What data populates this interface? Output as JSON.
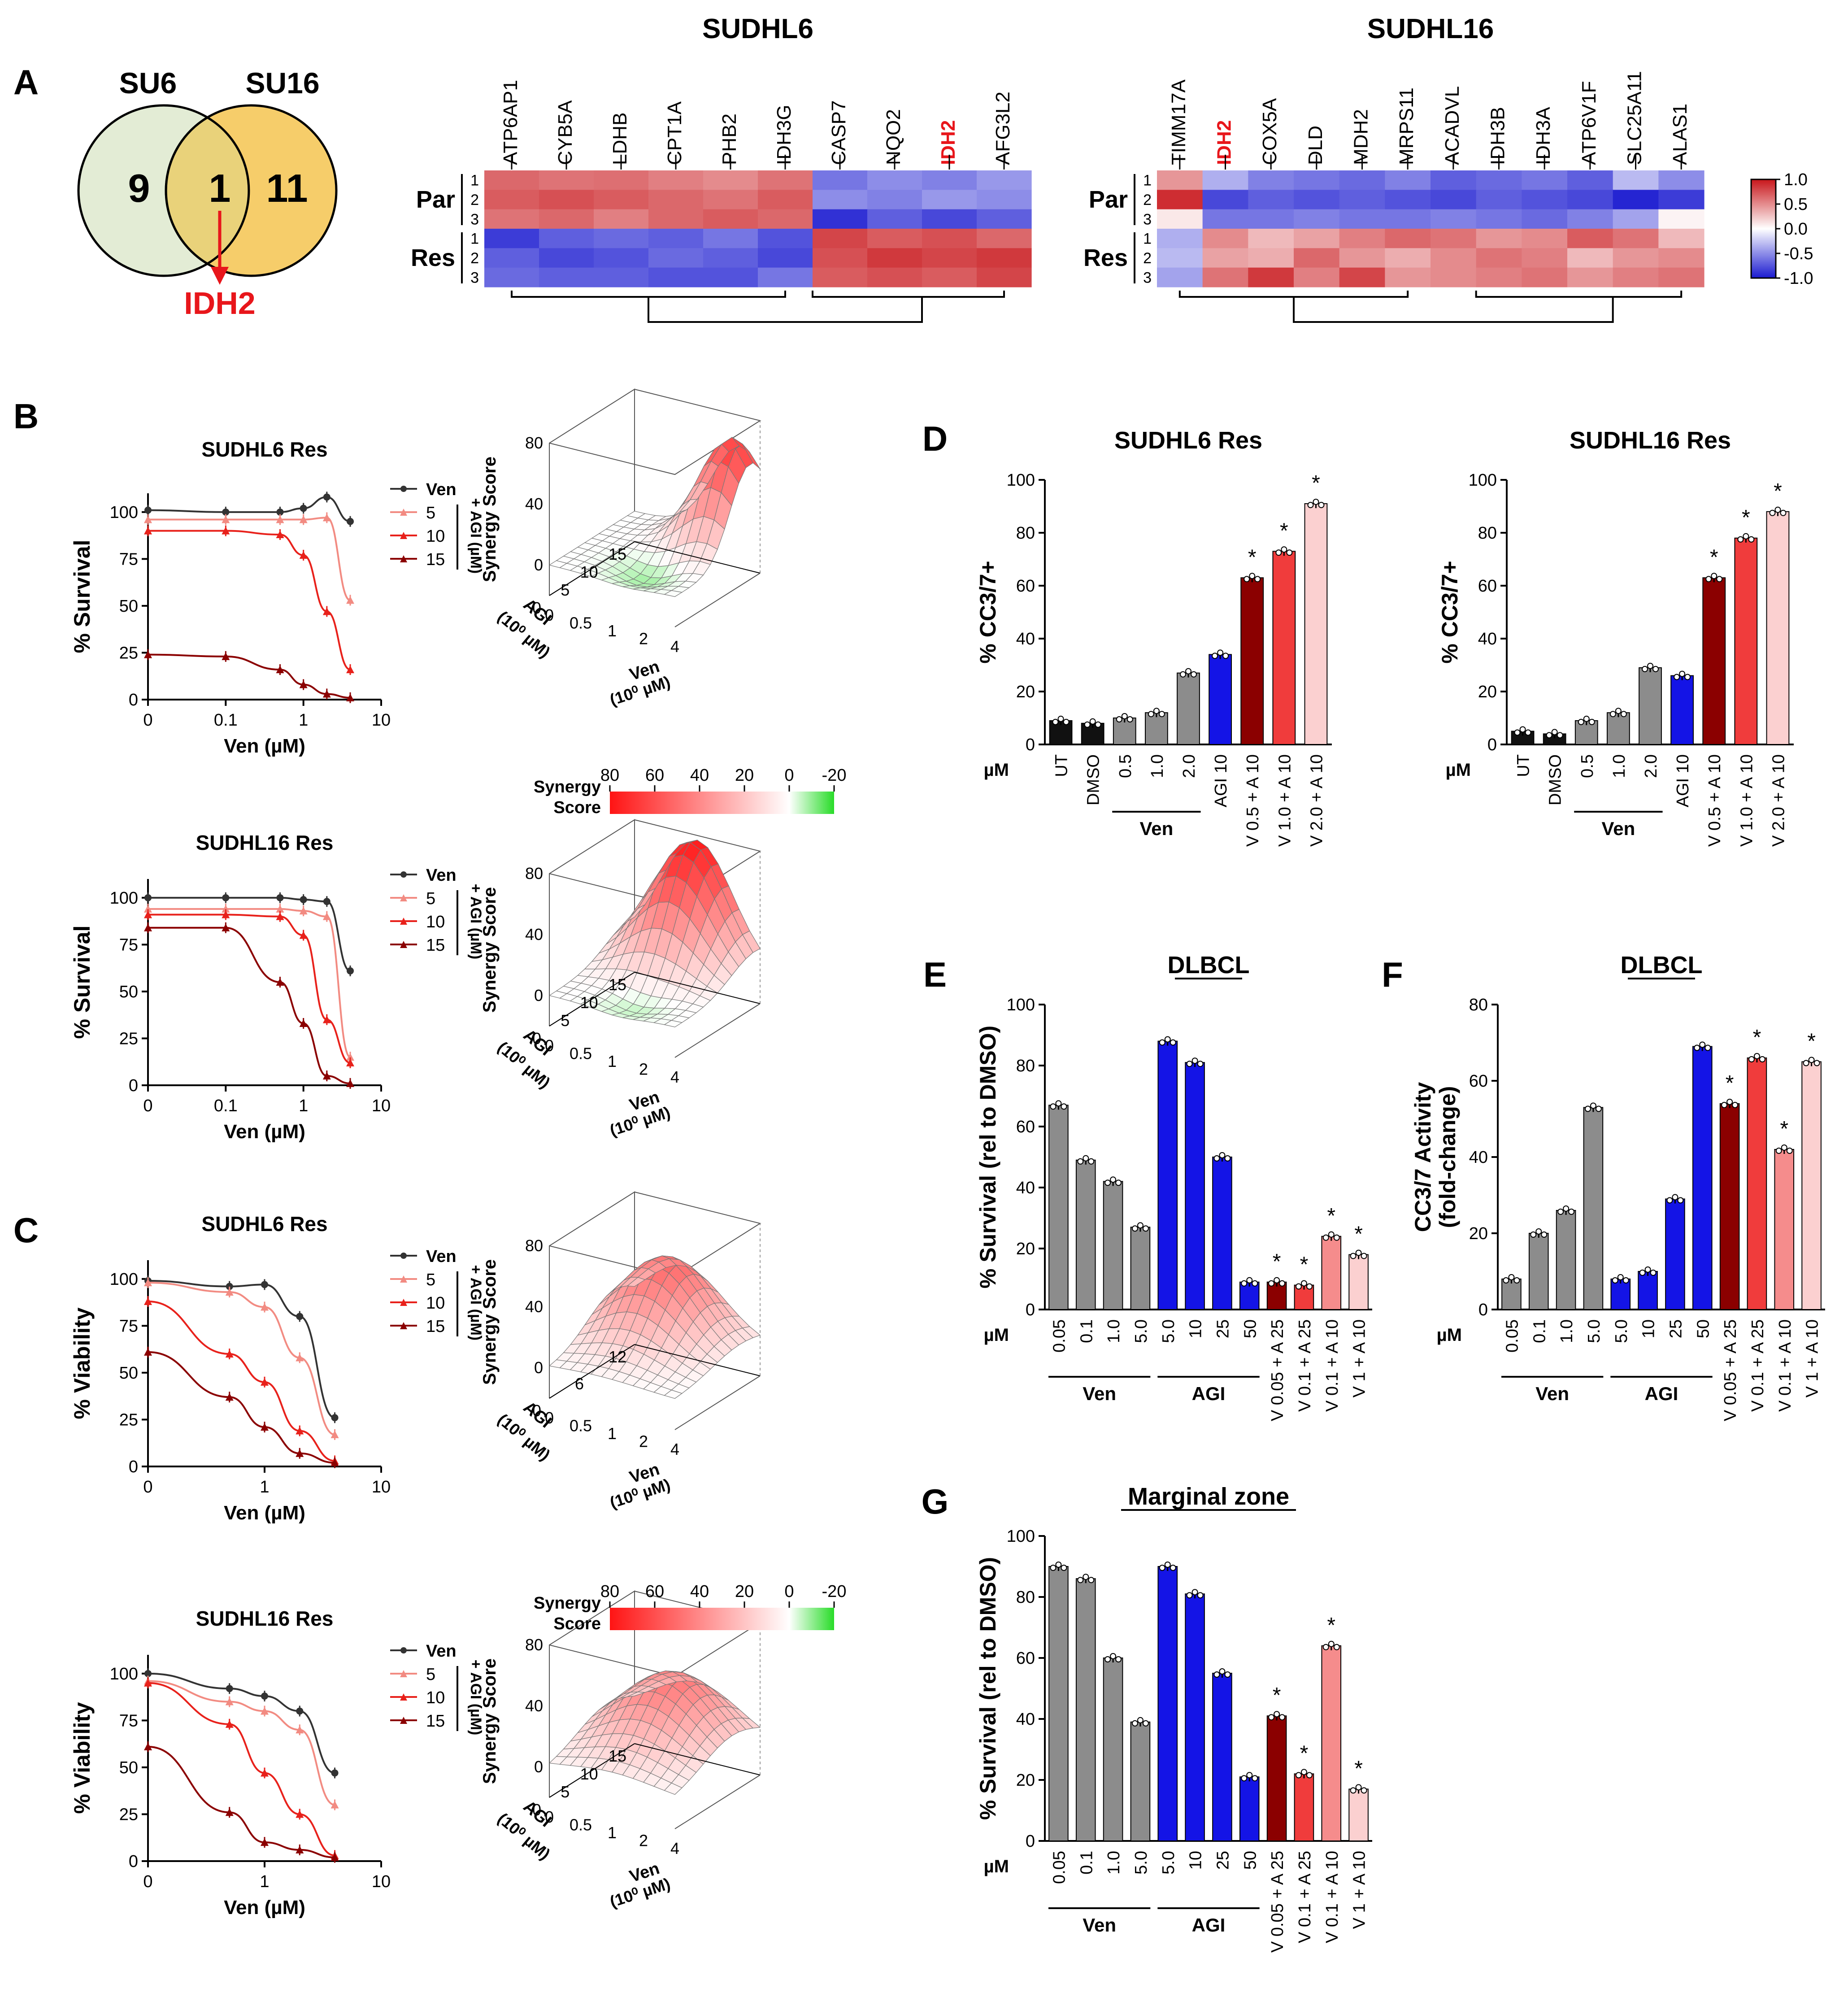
{
  "panel_letters": [
    "A",
    "B",
    "C",
    "D",
    "E",
    "F",
    "G"
  ],
  "colors": {
    "ven": "#333333",
    "agi5": "#f28b82",
    "agi10": "#e8211b",
    "agi15": "#8b0000",
    "grey_bar": "#8c8c8c",
    "black_bar": "#111111",
    "blue_bar": "#1414e6",
    "combo1": "#8b0000",
    "combo2": "#f03c3c",
    "combo3": "#f58c8c",
    "combo4": "#fbd0d0",
    "idh2": "#e8161b",
    "heat_pos": "#c8161b",
    "heat_neg": "#1a1ad0",
    "mesh_green": "#9ee29e"
  },
  "venn": {
    "left_label": "SU6",
    "right_label": "SU16",
    "left_count": "9",
    "overlap_count": "1",
    "right_count": "11",
    "arrow_label": "IDH2"
  },
  "heatmap_scale": {
    "ticks": [
      "1.0",
      "0.5",
      "0.0",
      "-0.5",
      "-1.0"
    ]
  },
  "heatmaps": [
    {
      "title": "SUDHL6",
      "genes": [
        "ATP6AP1",
        "CYB5A",
        "LDHB",
        "CPT1A",
        "PHB2",
        "IDH3G",
        "CASP7",
        "NQO2",
        "IDH2",
        "AFG3L2"
      ],
      "highlight": "IDH2",
      "group_labels": [
        "Par",
        "Res"
      ],
      "row_labels": [
        "1",
        "2",
        "3",
        "1",
        "2",
        "3"
      ],
      "values": [
        [
          0.65,
          0.6,
          0.62,
          0.55,
          0.5,
          0.6,
          -0.6,
          -0.5,
          -0.55,
          -0.45
        ],
        [
          0.7,
          0.75,
          0.7,
          0.65,
          0.6,
          0.7,
          -0.5,
          -0.55,
          -0.45,
          -0.5
        ],
        [
          0.6,
          0.65,
          0.55,
          0.65,
          0.7,
          0.65,
          -0.9,
          -0.7,
          -0.8,
          -0.7
        ],
        [
          -0.85,
          -0.7,
          -0.65,
          -0.7,
          -0.6,
          -0.75,
          0.8,
          0.7,
          0.75,
          0.65
        ],
        [
          -0.7,
          -0.8,
          -0.75,
          -0.65,
          -0.7,
          -0.8,
          0.75,
          0.85,
          0.8,
          0.85
        ],
        [
          -0.65,
          -0.7,
          -0.7,
          -0.75,
          -0.75,
          -0.6,
          0.7,
          0.75,
          0.7,
          0.8
        ]
      ]
    },
    {
      "title": "SUDHL16",
      "genes": [
        "TIMM17A",
        "IDH2",
        "COX5A",
        "DLD",
        "MDH2",
        "MRPS11",
        "ACADVL",
        "IDH3B",
        "IDH3A",
        "ATP6V1F",
        "SLC25A11",
        "ALAS1"
      ],
      "highlight": "IDH2",
      "group_labels": [
        "Par",
        "Res"
      ],
      "row_labels": [
        "1",
        "2",
        "3",
        "1",
        "2",
        "3"
      ],
      "values": [
        [
          0.45,
          -0.35,
          -0.55,
          -0.6,
          -0.65,
          -0.55,
          -0.7,
          -0.65,
          -0.6,
          -0.7,
          -0.3,
          -0.5
        ],
        [
          0.9,
          -0.8,
          -0.7,
          -0.75,
          -0.7,
          -0.75,
          -0.8,
          -0.7,
          -0.75,
          -0.8,
          -0.95,
          -0.85
        ],
        [
          0.1,
          -0.6,
          -0.6,
          -0.55,
          -0.6,
          -0.6,
          -0.55,
          -0.6,
          -0.65,
          -0.55,
          -0.4,
          0.05
        ],
        [
          -0.35,
          0.5,
          0.3,
          0.4,
          0.55,
          0.65,
          0.6,
          0.45,
          0.5,
          0.7,
          0.6,
          0.3
        ],
        [
          -0.3,
          0.4,
          0.35,
          0.65,
          0.45,
          0.35,
          0.5,
          0.6,
          0.55,
          0.3,
          0.45,
          0.5
        ],
        [
          -0.4,
          0.6,
          0.85,
          0.55,
          0.8,
          0.45,
          0.5,
          0.55,
          0.6,
          0.45,
          0.55,
          0.6
        ]
      ]
    }
  ],
  "chart_data": [
    {
      "panel": "B",
      "type": "line",
      "title": "SUDHL6 Res",
      "xlabel": "Ven (µM)",
      "ylabel": "% Survival",
      "xticks": [
        "0",
        "0.1",
        "1",
        "10"
      ],
      "yticks": [
        0,
        25,
        50,
        75,
        100
      ],
      "ylim": [
        0,
        110
      ],
      "x": [
        0,
        0.1,
        0.5,
        1,
        2,
        4
      ],
      "legend": [
        "Ven",
        "5",
        "10",
        "15"
      ],
      "legend_group": "+ AGI (µM)",
      "series": [
        {
          "name": "Ven",
          "values": [
            101,
            100,
            100,
            102,
            108,
            95
          ]
        },
        {
          "name": "5",
          "values": [
            96,
            96,
            96,
            96,
            97,
            53
          ]
        },
        {
          "name": "10",
          "values": [
            90,
            90,
            88,
            77,
            47,
            16
          ]
        },
        {
          "name": "15",
          "values": [
            24,
            23,
            16,
            8,
            3,
            1
          ]
        }
      ]
    },
    {
      "panel": "B",
      "type": "line",
      "title": "SUDHL16 Res",
      "xlabel": "Ven (µM)",
      "ylabel": "% Survival",
      "xticks": [
        "0",
        "0.1",
        "1",
        "10"
      ],
      "yticks": [
        0,
        25,
        50,
        75,
        100
      ],
      "ylim": [
        0,
        110
      ],
      "x": [
        0,
        0.1,
        0.5,
        1,
        2,
        4
      ],
      "legend": [
        "Ven",
        "5",
        "10",
        "15"
      ],
      "legend_group": "+ AGI (µM)",
      "series": [
        {
          "name": "Ven",
          "values": [
            100,
            100,
            100,
            99,
            98,
            61
          ]
        },
        {
          "name": "5",
          "values": [
            94,
            94,
            94,
            93,
            90,
            15
          ]
        },
        {
          "name": "10",
          "values": [
            91,
            91,
            90,
            80,
            35,
            12
          ]
        },
        {
          "name": "15",
          "values": [
            84,
            84,
            55,
            33,
            5,
            1
          ]
        }
      ]
    },
    {
      "panel": "C",
      "type": "line",
      "title": "SUDHL6  Res",
      "xlabel": "Ven (µM)",
      "ylabel": "% Viability",
      "xticks": [
        "0",
        "1",
        "10"
      ],
      "yticks": [
        0,
        25,
        50,
        75,
        100
      ],
      "ylim": [
        0,
        110
      ],
      "x": [
        0,
        0.5,
        1,
        2,
        4
      ],
      "legend": [
        "Ven",
        "5",
        "10",
        "15"
      ],
      "legend_group": "+ AGI (µM)",
      "series": [
        {
          "name": "Ven",
          "values": [
            99,
            96,
            97,
            80,
            26
          ]
        },
        {
          "name": "5",
          "values": [
            98,
            93,
            85,
            58,
            17
          ]
        },
        {
          "name": "10",
          "values": [
            88,
            60,
            45,
            19,
            3
          ]
        },
        {
          "name": "15",
          "values": [
            61,
            37,
            21,
            7,
            2
          ]
        }
      ]
    },
    {
      "panel": "C",
      "type": "line",
      "title": "SUDHL16  Res",
      "xlabel": "Ven (µM)",
      "ylabel": "% Viability",
      "xticks": [
        "0",
        "1",
        "10"
      ],
      "yticks": [
        0,
        25,
        50,
        75,
        100
      ],
      "ylim": [
        0,
        110
      ],
      "x": [
        0,
        0.5,
        1,
        2,
        4
      ],
      "legend": [
        "Ven",
        "5",
        "10",
        "15"
      ],
      "legend_group": "+ AGI (µM)",
      "series": [
        {
          "name": "Ven",
          "values": [
            100,
            92,
            88,
            80,
            47
          ]
        },
        {
          "name": "5",
          "values": [
            96,
            85,
            80,
            70,
            30
          ]
        },
        {
          "name": "10",
          "values": [
            95,
            73,
            47,
            25,
            3
          ]
        },
        {
          "name": "15",
          "values": [
            61,
            26,
            10,
            6,
            2
          ]
        }
      ]
    },
    {
      "panel": "B",
      "type": "surface",
      "zlabel": "Synergy Score",
      "zticks": [
        "0",
        "40",
        "80"
      ],
      "zlim": [
        -20,
        80
      ],
      "agi_label": "AGI",
      "agi_unit": "(10⁰ µM)",
      "agi_ticks": [
        "0",
        "5",
        "10",
        "15"
      ],
      "ven_label": "Ven",
      "ven_unit": "(10⁰ µM)",
      "ven_ticks": [
        "0",
        "0.5",
        "1",
        "2",
        "4"
      ],
      "peak": {
        "u": 0.85,
        "v": 0.15,
        "height": 75,
        "spread": 0.32
      },
      "dip": {
        "u": 0.6,
        "v": 0.7,
        "depth": -10
      }
    },
    {
      "panel": "B",
      "type": "surface",
      "zlabel": "Synergy Score",
      "zticks": [
        "0",
        "40",
        "80"
      ],
      "zlim": [
        -20,
        80
      ],
      "agi_label": "AGI",
      "agi_unit": "(10⁰ µM)",
      "agi_ticks": [
        "0",
        "5",
        "10",
        "15"
      ],
      "ven_label": "Ven",
      "ven_unit": "(10⁰ µM)",
      "ven_ticks": [
        "0",
        "0.5",
        "1",
        "2",
        "4"
      ],
      "peak": {
        "u": 0.5,
        "v": 0.1,
        "height": 82,
        "spread": 0.4
      },
      "dip": {
        "u": 0.55,
        "v": 0.75,
        "depth": -8
      }
    },
    {
      "panel": "C",
      "type": "surface",
      "zlabel": "Synergy Score",
      "zticks": [
        "0",
        "40",
        "80"
      ],
      "zlim": [
        -20,
        80
      ],
      "agi_label": "AGI",
      "agi_unit": "(10⁰ µM)",
      "agi_ticks": [
        "0",
        "6",
        "12"
      ],
      "ven_label": "Ven",
      "ven_unit": "(10⁰ µM)",
      "ven_ticks": [
        "0",
        "0.5",
        "1",
        "2",
        "4"
      ],
      "peak": {
        "u": 0.4,
        "v": 0.3,
        "height": 62,
        "spread": 0.45
      },
      "dip": {
        "u": 0,
        "v": 0,
        "depth": 0
      }
    },
    {
      "panel": "C",
      "type": "surface",
      "zlabel": "Synergy Score",
      "zticks": [
        "0",
        "40",
        "80"
      ],
      "zlim": [
        -20,
        80
      ],
      "agi_label": "AGI",
      "agi_unit": "(10⁰ µM)",
      "agi_ticks": [
        "0",
        "5",
        "10",
        "15"
      ],
      "ven_label": "Ven",
      "ven_unit": "(10⁰ µM)",
      "ven_ticks": [
        "0",
        "0.5",
        "1",
        "2",
        "4"
      ],
      "peak": {
        "u": 0.5,
        "v": 0.4,
        "height": 58,
        "spread": 0.5
      },
      "dip": {
        "u": 0,
        "v": 0,
        "depth": 0
      }
    },
    {
      "panel": "D",
      "type": "bar",
      "title": "SUDHL6 Res",
      "ylabel": "% CC3/7+",
      "yticks": [
        0,
        20,
        40,
        60,
        80,
        100
      ],
      "ylim": [
        0,
        100
      ],
      "unit_label": "µM",
      "categories": [
        "UT",
        "DMSO",
        "0.5",
        "1.0",
        "2.0",
        "AGI 10",
        "V 0.5 + A 10",
        "V 1.0 + A 10",
        "V 2.0 + A 10"
      ],
      "values": [
        9,
        8,
        10,
        12,
        27,
        34,
        63,
        73,
        91
      ],
      "colors": [
        "black_bar",
        "black_bar",
        "grey_bar",
        "grey_bar",
        "grey_bar",
        "blue_bar",
        "combo1",
        "combo2",
        "combo4"
      ],
      "stars": [
        6,
        7,
        8
      ],
      "groups": [
        {
          "label": "Ven",
          "from": 2,
          "to": 4
        }
      ]
    },
    {
      "panel": "D",
      "type": "bar",
      "title": "SUDHL16 Res",
      "ylabel": "% CC3/7+",
      "yticks": [
        0,
        20,
        40,
        60,
        80,
        100
      ],
      "ylim": [
        0,
        100
      ],
      "unit_label": "µM",
      "categories": [
        "UT",
        "DMSO",
        "0.5",
        "1.0",
        "2.0",
        "AGI 10",
        "V 0.5 + A 10",
        "V 1.0 + A 10",
        "V 2.0 + A 10"
      ],
      "values": [
        5,
        4,
        9,
        12,
        29,
        26,
        63,
        78,
        88
      ],
      "colors": [
        "black_bar",
        "black_bar",
        "grey_bar",
        "grey_bar",
        "grey_bar",
        "blue_bar",
        "combo1",
        "combo2",
        "combo4"
      ],
      "stars": [
        6,
        7,
        8
      ],
      "groups": [
        {
          "label": "Ven",
          "from": 2,
          "to": 4
        }
      ]
    },
    {
      "panel": "E",
      "type": "bar",
      "title": "DLBCL",
      "ylabel": "% Survival (rel to DMSO)",
      "yticks": [
        0,
        20,
        40,
        60,
        80,
        100
      ],
      "ylim": [
        0,
        100
      ],
      "unit_label": "µM",
      "categories": [
        "0.05",
        "0.1",
        "1.0",
        "5.0",
        "5.0",
        "10",
        "25",
        "50",
        "V 0.05 + A 25",
        "V 0.1 + A 25",
        "V 0.1 + A 10",
        "V 1 + A 10"
      ],
      "values": [
        67,
        49,
        42,
        27,
        88,
        81,
        50,
        9,
        9,
        8,
        24,
        18
      ],
      "colors": [
        "grey_bar",
        "grey_bar",
        "grey_bar",
        "grey_bar",
        "blue_bar",
        "blue_bar",
        "blue_bar",
        "blue_bar",
        "combo1",
        "combo2",
        "combo3",
        "combo4"
      ],
      "stars": [
        8,
        9,
        10,
        11
      ],
      "groups": [
        {
          "label": "Ven",
          "from": 0,
          "to": 3
        },
        {
          "label": "AGI",
          "from": 4,
          "to": 7
        }
      ]
    },
    {
      "panel": "F",
      "type": "bar",
      "title": "DLBCL",
      "ylabel": "CC3/7 Activity (fold-change)",
      "ylabel_line2": "(fold-change)",
      "ylabel_line1": "CC3/7 Activity",
      "yticks": [
        0,
        20,
        40,
        60,
        80
      ],
      "ylim": [
        0,
        80
      ],
      "unit_label": "µM",
      "categories": [
        "0.05",
        "0.1",
        "1.0",
        "5.0",
        "5.0",
        "10",
        "25",
        "50",
        "V 0.05 + A 25",
        "V 0.1 + A 25",
        "V 0.1 + A 10",
        "V 1 + A 10"
      ],
      "values": [
        8,
        20,
        26,
        53,
        8,
        10,
        29,
        69,
        54,
        66,
        42,
        65
      ],
      "colors": [
        "grey_bar",
        "grey_bar",
        "grey_bar",
        "grey_bar",
        "blue_bar",
        "blue_bar",
        "blue_bar",
        "blue_bar",
        "combo1",
        "combo2",
        "combo3",
        "combo4"
      ],
      "stars": [
        8,
        9,
        10,
        11
      ],
      "groups": [
        {
          "label": "Ven",
          "from": 0,
          "to": 3
        },
        {
          "label": "AGI",
          "from": 4,
          "to": 7
        }
      ]
    },
    {
      "panel": "G",
      "type": "bar",
      "title": "Marginal zone",
      "ylabel": "% Survival (rel to DMSO)",
      "yticks": [
        0,
        20,
        40,
        60,
        80,
        100
      ],
      "ylim": [
        0,
        100
      ],
      "unit_label": "µM",
      "categories": [
        "0.05",
        "0.1",
        "1.0",
        "5.0",
        "5.0",
        "10",
        "25",
        "50",
        "V 0.05 + A 25",
        "V 0.1 + A 25",
        "V 0.1 + A 10",
        "V 1 + A 10"
      ],
      "values": [
        90,
        86,
        60,
        39,
        90,
        81,
        55,
        21,
        41,
        22,
        64,
        17
      ],
      "colors": [
        "grey_bar",
        "grey_bar",
        "grey_bar",
        "grey_bar",
        "blue_bar",
        "blue_bar",
        "blue_bar",
        "blue_bar",
        "combo1",
        "combo2",
        "combo3",
        "combo4"
      ],
      "stars": [
        8,
        9,
        10,
        11
      ],
      "groups": [
        {
          "label": "Ven",
          "from": 0,
          "to": 3
        },
        {
          "label": "AGI",
          "from": 4,
          "to": 7
        }
      ]
    }
  ],
  "synergy_legend": {
    "title_1": "Synergy",
    "title_2": "Score",
    "ticks": [
      "80",
      "60",
      "40",
      "20",
      "0",
      "-20"
    ]
  },
  "star": "*"
}
